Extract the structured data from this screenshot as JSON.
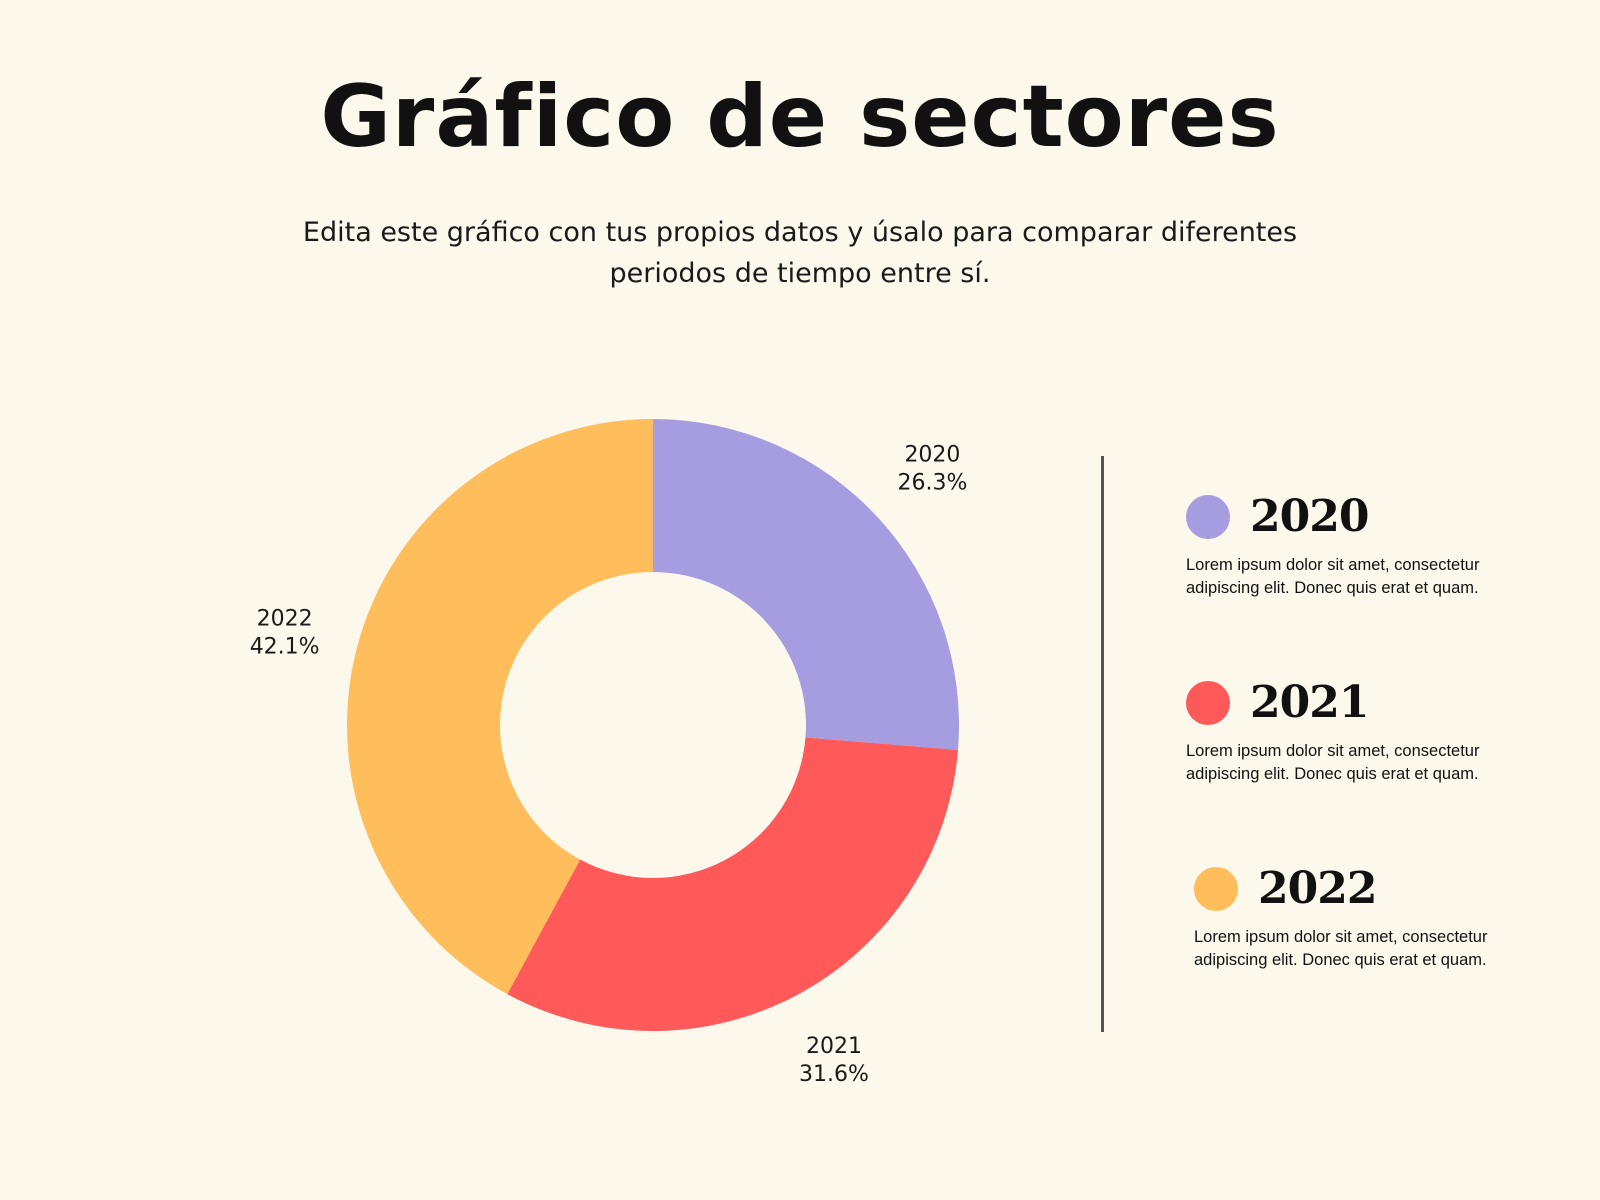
{
  "title": "Gráfico de sectores",
  "subtitle": "Edita este gráfico con tus propios datos y úsalo para comparar diferentes periodos de tiempo entre sí.",
  "colors": {
    "background": "#fcf8ec",
    "2020": "#a69de0",
    "2021": "#ff5959",
    "2022": "#ffbe5b"
  },
  "chart_data": {
    "type": "pie",
    "variant": "donut",
    "start": "12 o'clock",
    "direction": "clockwise",
    "slices": [
      {
        "label": "2020",
        "percent_label": "26.3%",
        "value": 26.3,
        "color": "#a69de0"
      },
      {
        "label": "2021",
        "percent_label": "31.6%",
        "value": 31.6,
        "color": "#ff5959"
      },
      {
        "label": "2022",
        "percent_label": "42.1%",
        "value": 42.1,
        "color": "#ffbe5b"
      }
    ]
  },
  "legend": [
    {
      "year": "2020",
      "color": "#a69de0",
      "text": "Lorem ipsum dolor sit amet, consectetur adipiscing elit. Donec quis erat et quam."
    },
    {
      "year": "2021",
      "color": "#ff5959",
      "text": "Lorem ipsum dolor sit amet, consectetur adipiscing elit. Donec quis erat et quam."
    },
    {
      "year": "2022",
      "color": "#ffbe5b",
      "text": "Lorem ipsum dolor sit amet, consectetur adipiscing elit. Donec quis erat et quam."
    }
  ]
}
